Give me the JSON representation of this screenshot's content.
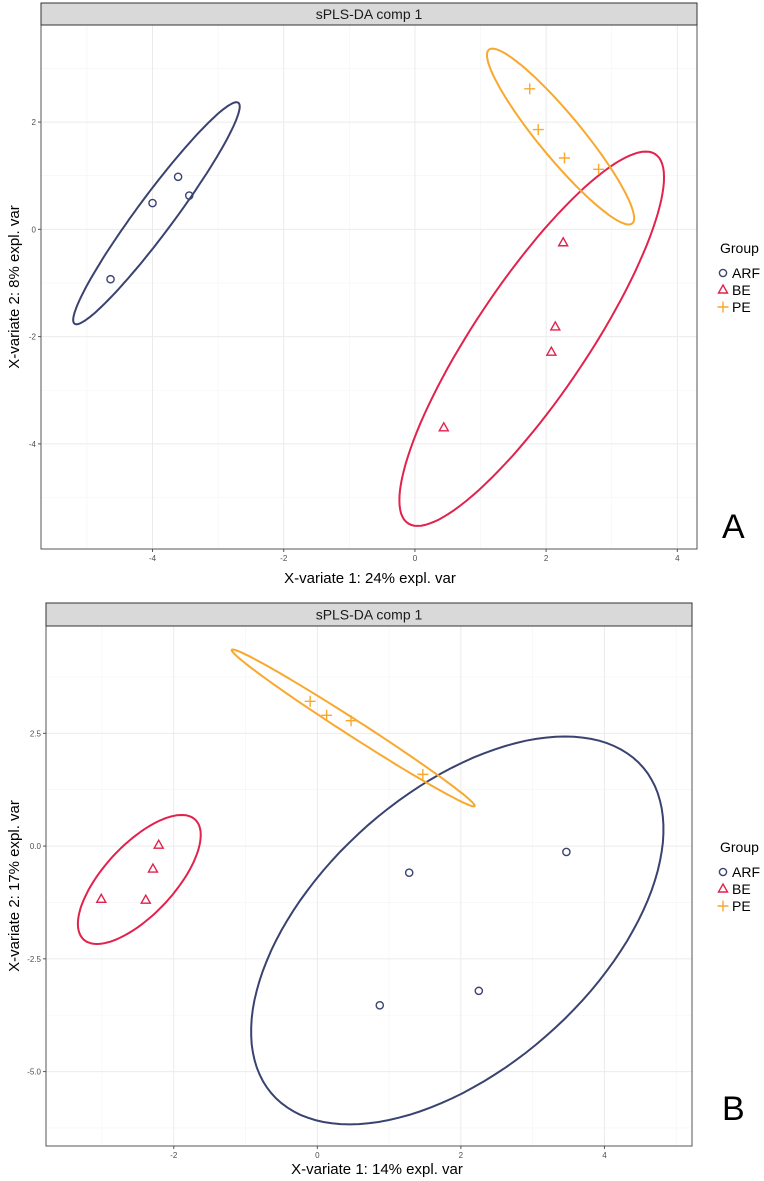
{
  "colors": {
    "ARF": "#3a4270",
    "BE": "#e2214c",
    "PE": "#f9a82e"
  },
  "chart_data": [
    {
      "type": "scatter",
      "panel_label": "A",
      "title": "sPLS-DA comp 1",
      "xlabel": "X-variate 1: 24% expl.  var",
      "ylabel": "X-variate 2: 8% expl.  var",
      "xlim": [
        -5.7,
        4.3
      ],
      "ylim": [
        -5.96,
        3.81
      ],
      "xticks": [
        -4,
        -2,
        0,
        2,
        4
      ],
      "xtick_labels": [
        "-4",
        "-2",
        "0",
        "2",
        "4"
      ],
      "yticks": [
        -4,
        -2,
        0,
        2
      ],
      "ytick_labels": [
        "-4",
        "-2",
        "0",
        "2"
      ],
      "x_minor": [
        -5,
        -3,
        -1,
        1,
        3
      ],
      "y_minor": [
        -5,
        -3,
        -1,
        1,
        3
      ],
      "grid": true,
      "legend": {
        "title": "Group",
        "placement": "right",
        "entries": [
          "ARF",
          "BE",
          "PE"
        ]
      },
      "series": [
        {
          "name": "ARF",
          "marker": "circle",
          "points": [
            [
              -3.61,
              0.98
            ],
            [
              -4.0,
              0.49
            ],
            [
              -3.44,
              0.63
            ],
            [
              -4.64,
              -0.93
            ]
          ],
          "ellipse": {
            "center": [
              -3.94,
              0.3
            ],
            "a": [
              1.22,
              2.07
            ],
            "b": [
              0.35,
              0
            ]
          }
        },
        {
          "name": "BE",
          "marker": "triangle",
          "points": [
            [
              2.26,
              -0.25
            ],
            [
              2.14,
              -1.82
            ],
            [
              2.08,
              -2.29
            ],
            [
              0.44,
              -3.7
            ]
          ],
          "ellipse": {
            "center": [
              1.78,
              -2.04
            ],
            "a": [
              1.74,
              3.49
            ],
            "b": [
              1.02,
              0
            ]
          }
        },
        {
          "name": "PE",
          "marker": "plus",
          "points": [
            [
              1.75,
              2.62
            ],
            [
              1.88,
              1.86
            ],
            [
              2.28,
              1.33
            ],
            [
              2.8,
              1.12
            ]
          ],
          "ellipse": {
            "center": [
              2.22,
              1.73
            ],
            "a": [
              -1.04,
              1.64
            ],
            "b": [
              0.42,
              0
            ]
          }
        }
      ]
    },
    {
      "type": "scatter",
      "panel_label": "B",
      "title": "sPLS-DA comp 1",
      "xlabel": "X-variate 1: 14% expl.  var",
      "ylabel": "X-variate 2: 17% expl.  var",
      "xlim": [
        -3.78,
        5.22
      ],
      "ylim": [
        -6.65,
        4.88
      ],
      "xticks": [
        -2,
        0,
        2,
        4
      ],
      "xtick_labels": [
        "-2",
        "0",
        "2",
        "4"
      ],
      "yticks": [
        2.5,
        0,
        -2.5,
        -5
      ],
      "ytick_labels": [
        "2.5",
        "0.0",
        "-2.5",
        "-5.0"
      ],
      "x_minor": [
        -3,
        -1,
        1,
        3,
        5
      ],
      "y_minor": [
        3.75,
        1.25,
        -1.25,
        -3.75,
        -6.25
      ],
      "grid": true,
      "legend": {
        "title": "Group",
        "placement": "right",
        "entries": [
          "ARF",
          "BE",
          "PE"
        ]
      },
      "series": [
        {
          "name": "ARF",
          "marker": "circle",
          "points": [
            [
              3.47,
              -0.13
            ],
            [
              1.28,
              -0.59
            ],
            [
              2.25,
              -3.21
            ],
            [
              0.87,
              -3.53
            ]
          ],
          "ellipse": {
            "center": [
              1.95,
              -1.87
            ],
            "a": [
              1.5,
              4.3
            ],
            "b": [
              2.45,
              0
            ]
          }
        },
        {
          "name": "BE",
          "marker": "triangle",
          "points": [
            [
              -2.21,
              0.02
            ],
            [
              -2.29,
              -0.51
            ],
            [
              -3.01,
              -1.18
            ],
            [
              -2.39,
              -1.2
            ]
          ],
          "ellipse": {
            "center": [
              -2.48,
              -0.74
            ],
            "a": [
              0.59,
              1.43
            ],
            "b": [
              0.62,
              0
            ]
          }
        },
        {
          "name": "PE",
          "marker": "plus",
          "points": [
            [
              -0.1,
              3.21
            ],
            [
              0.13,
              2.9
            ],
            [
              0.47,
              2.78
            ],
            [
              1.47,
              1.59
            ]
          ],
          "ellipse": {
            "center": [
              0.5,
              2.62
            ],
            "a": [
              -1.68,
              1.74
            ],
            "b": [
              0.21,
              0
            ]
          }
        }
      ]
    }
  ]
}
